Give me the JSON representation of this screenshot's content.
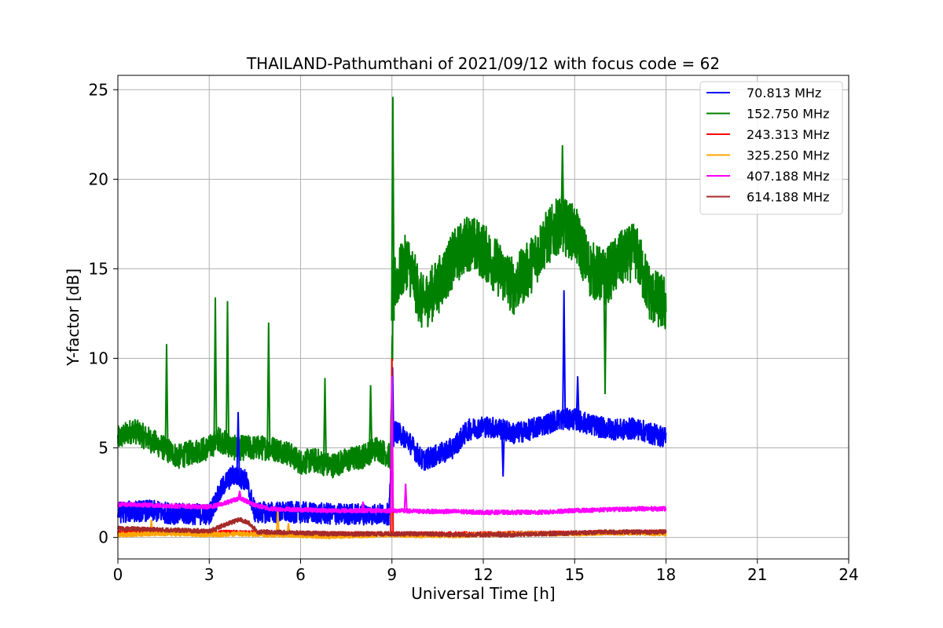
{
  "chart_data": {
    "type": "line",
    "title": "THAILAND-Pathumthani of 2021/09/12 with focus code = 62",
    "xlabel": "Universal Time [h]",
    "ylabel": "Y-factor [dB]",
    "xlim": [
      0,
      24
    ],
    "ylim": [
      -1.2,
      25.8
    ],
    "xticks": [
      0,
      3,
      6,
      9,
      12,
      15,
      18,
      21,
      24
    ],
    "yticks": [
      0,
      5,
      10,
      15,
      20,
      25
    ],
    "grid": true,
    "legend_position": "top-right",
    "series": [
      {
        "name": " 70.813 MHz",
        "color": "#0000ff",
        "x": [
          0,
          1,
          2,
          3,
          3.5,
          3.8,
          4.2,
          4.5,
          5,
          6,
          7,
          8,
          8.9,
          9.05,
          9.5,
          10,
          10.5,
          11,
          11.5,
          12,
          12.5,
          13,
          13.5,
          14,
          14.5,
          15,
          15.5,
          16,
          16.5,
          17,
          17.5,
          18
        ],
        "y": [
          1.4,
          1.5,
          1.3,
          1.3,
          3.0,
          3.5,
          3.2,
          1.4,
          1.4,
          1.4,
          1.3,
          1.3,
          1.3,
          6.0,
          5.5,
          4.3,
          4.6,
          5.0,
          6.0,
          6.2,
          6.1,
          5.8,
          6.0,
          6.3,
          6.6,
          6.6,
          6.3,
          6.1,
          6.0,
          6.1,
          5.8,
          5.6
        ],
        "spikes": [
          [
            3.95,
            7.0
          ],
          [
            9.02,
            9.5
          ],
          [
            12.65,
            3.4
          ],
          [
            14.65,
            13.8
          ],
          [
            15.1,
            9.0
          ]
        ]
      },
      {
        "name": "152.750 MHz",
        "color": "#008000",
        "x": [
          0,
          0.5,
          1,
          1.5,
          2,
          2.5,
          3,
          3.3,
          3.8,
          4.3,
          5,
          5.5,
          6,
          6.5,
          7,
          7.5,
          8,
          8.5,
          8.95,
          9.05,
          9.5,
          10,
          10.5,
          11,
          11.5,
          12,
          12.5,
          13,
          13.5,
          14,
          14.5,
          15,
          15.5,
          16,
          16.5,
          17,
          17.5,
          18
        ],
        "y": [
          5.5,
          6.0,
          5.5,
          5.0,
          4.5,
          4.8,
          5.0,
          5.5,
          5.0,
          5.0,
          5.0,
          4.8,
          4.2,
          4.3,
          4.0,
          4.3,
          4.5,
          5.0,
          4.5,
          14.0,
          15.5,
          13.0,
          14.0,
          15.5,
          16.5,
          16.0,
          15.0,
          14.0,
          15.0,
          16.5,
          17.5,
          17.0,
          15.0,
          14.5,
          15.5,
          16.0,
          13.5,
          13.0
        ],
        "spikes": [
          [
            1.6,
            10.8
          ],
          [
            3.2,
            13.4
          ],
          [
            3.6,
            13.2
          ],
          [
            4.95,
            12.0
          ],
          [
            6.8,
            8.9
          ],
          [
            8.3,
            8.5
          ],
          [
            9.03,
            24.6
          ],
          [
            14.6,
            21.9
          ],
          [
            16.0,
            8.0
          ]
        ]
      },
      {
        "name": "243.313 MHz",
        "color": "#ff0000",
        "x": [
          0,
          3,
          6,
          9,
          12,
          15,
          18
        ],
        "y": [
          0.3,
          0.3,
          0.2,
          0.2,
          0.2,
          0.25,
          0.3
        ],
        "spikes": [
          [
            9.0,
            10.0
          ]
        ]
      },
      {
        "name": "325.250 MHz",
        "color": "#ffa500",
        "x": [
          0,
          1,
          2,
          3,
          4,
          5,
          6,
          7,
          8,
          9,
          10,
          11,
          12,
          13,
          14,
          15,
          16,
          17,
          18
        ],
        "y": [
          0.15,
          0.2,
          0.2,
          0.15,
          0.2,
          0.15,
          0.1,
          0.05,
          0.1,
          0.15,
          0.1,
          0.1,
          0.15,
          0.2,
          0.2,
          0.2,
          0.25,
          0.25,
          0.2
        ],
        "spikes": [
          [
            1.1,
            1.0
          ],
          [
            5.25,
            1.6
          ],
          [
            5.6,
            0.8
          ]
        ]
      },
      {
        "name": "407.188 MHz",
        "color": "#ff00ff",
        "x": [
          0,
          1,
          2,
          3,
          3.5,
          4,
          4.5,
          5,
          6,
          7,
          8,
          9,
          10,
          11,
          12,
          13,
          14,
          15,
          16,
          17,
          18
        ],
        "y": [
          1.85,
          1.8,
          1.75,
          1.7,
          1.9,
          2.2,
          1.8,
          1.6,
          1.55,
          1.5,
          1.5,
          1.5,
          1.45,
          1.45,
          1.4,
          1.4,
          1.4,
          1.5,
          1.55,
          1.6,
          1.6
        ],
        "spikes": [
          [
            4.0,
            2.6
          ],
          [
            8.05,
            2.0
          ],
          [
            9.0,
            9.0
          ],
          [
            9.45,
            3.0
          ]
        ]
      },
      {
        "name": "614.188 MHz",
        "color": "#a52a2a",
        "x": [
          0,
          1,
          2,
          3,
          3.5,
          4,
          4.3,
          4.6,
          5,
          6,
          7,
          8,
          9,
          10,
          11,
          12,
          13,
          14,
          15,
          16,
          17,
          18
        ],
        "y": [
          0.5,
          0.45,
          0.4,
          0.35,
          0.7,
          1.0,
          0.8,
          0.3,
          0.3,
          0.25,
          0.2,
          0.2,
          0.2,
          0.2,
          0.15,
          0.15,
          0.15,
          0.2,
          0.25,
          0.3,
          0.3,
          0.3
        ],
        "spikes": []
      }
    ]
  }
}
